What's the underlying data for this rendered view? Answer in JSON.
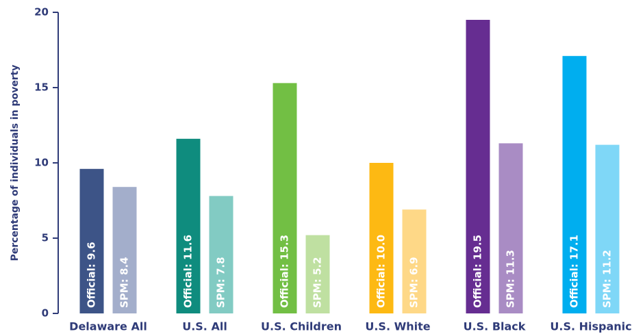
{
  "chart_data": {
    "type": "bar",
    "y_label": "Percentage of individuals in poverty",
    "categories": [
      "Delaware All",
      "U.S. All",
      "U.S. Children",
      "U.S. White",
      "U.S. Black",
      "U.S. Hispanic"
    ],
    "series": [
      {
        "values": [
          9.6,
          11.6,
          15.3,
          10.0,
          19.5,
          17.1
        ],
        "value_labels": [
          "Official: 9.6",
          "Official: 11.6",
          "Official: 15.3",
          "Official: 10.0",
          "Official: 19.5",
          "Official: 17.1"
        ],
        "colors": [
          "#3d5487",
          "#0f8c7e",
          "#72bf44",
          "#fdb913",
          "#662d91",
          "#00aeef"
        ]
      },
      {
        "values": [
          8.4,
          7.8,
          5.2,
          6.9,
          11.3,
          11.2
        ],
        "value_labels": [
          "SPM: 8.4",
          "SPM: 7.8",
          "SPM: 5.2",
          "SPM: 6.9",
          "SPM: 11.3",
          "SPM: 11.2"
        ],
        "colors": [
          "#a3aecb",
          "#82cbc3",
          "#bfe0a1",
          "#fed887",
          "#a98cc4",
          "#7fd7f7"
        ]
      }
    ],
    "ylim": [
      0,
      20
    ],
    "yticks": [
      0,
      5,
      10,
      15,
      20
    ]
  }
}
